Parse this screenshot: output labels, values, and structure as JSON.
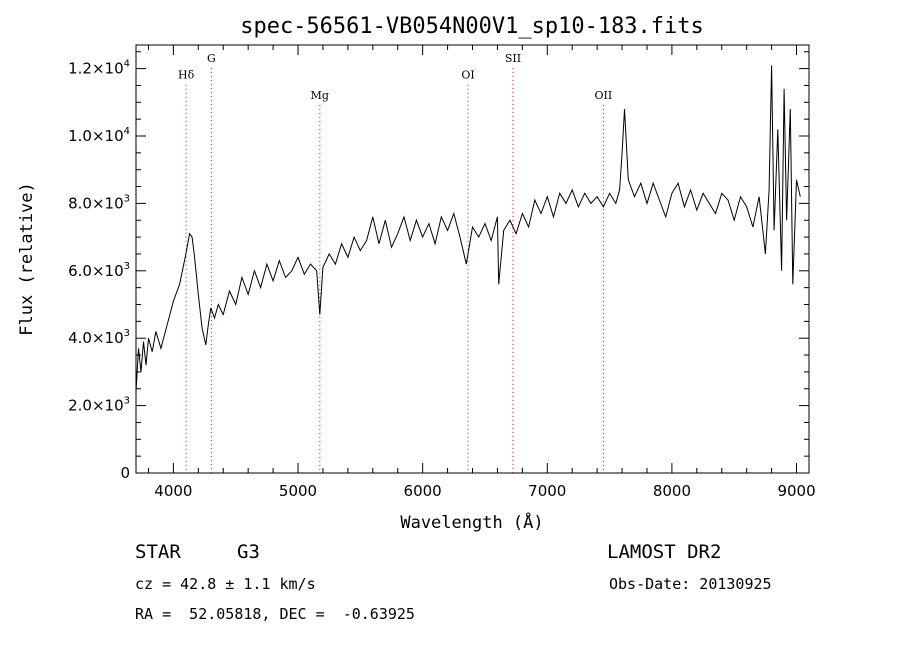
{
  "chart_data": {
    "type": "line",
    "title": "spec-56561-VB054N00V1_sp10-183.fits",
    "xlabel": "Wavelength (Å)",
    "ylabel": "Flux (relative)",
    "xlim": [
      3700,
      9100
    ],
    "ylim": [
      0,
      12700
    ],
    "xticks": [
      {
        "value": 4000,
        "label": "4000"
      },
      {
        "value": 5000,
        "label": "5000"
      },
      {
        "value": 6000,
        "label": "6000"
      },
      {
        "value": 7000,
        "label": "7000"
      },
      {
        "value": 8000,
        "label": "8000"
      },
      {
        "value": 9000,
        "label": "9000"
      }
    ],
    "yticks": [
      {
        "value": 0,
        "mant": "0",
        "exp": ""
      },
      {
        "value": 2000,
        "mant": "2.0×10",
        "exp": "3"
      },
      {
        "value": 4000,
        "mant": "4.0×10",
        "exp": "3"
      },
      {
        "value": 6000,
        "mant": "6.0×10",
        "exp": "3"
      },
      {
        "value": 8000,
        "mant": "8.0×10",
        "exp": "3"
      },
      {
        "value": 10000,
        "mant": "1.0×10",
        "exp": "4"
      },
      {
        "value": 12000,
        "mant": "1.2×10",
        "exp": "4"
      }
    ],
    "grid": false,
    "line_color": "#000000",
    "marker_color": "#cc0000",
    "spectral_lines": [
      {
        "label": "Hδ",
        "wavelength": 4102,
        "label_flux": 11700
      },
      {
        "label": "G",
        "wavelength": 4305,
        "label_flux": 12200
      },
      {
        "label": "Mg",
        "wavelength": 5175,
        "label_flux": 11100
      },
      {
        "label": "OI",
        "wavelength": 6364,
        "label_flux": 11700
      },
      {
        "label": "SII",
        "wavelength": 6725,
        "label_flux": 12200
      },
      {
        "label": "OII",
        "wavelength": 7450,
        "label_flux": 11100
      }
    ],
    "series": [
      {
        "x": [
          3700,
          3720,
          3740,
          3760,
          3780,
          3800,
          3830,
          3860,
          3900,
          3950,
          4000,
          4050,
          4100,
          4130,
          4150,
          4170,
          4200,
          4230,
          4260,
          4280,
          4300,
          4330,
          4360,
          4400,
          4450,
          4500,
          4550,
          4600,
          4650,
          4700,
          4750,
          4800,
          4850,
          4900,
          4950,
          5000,
          5050,
          5100,
          5150,
          5175,
          5200,
          5250,
          5300,
          5350,
          5400,
          5450,
          5500,
          5550,
          5600,
          5650,
          5700,
          5750,
          5800,
          5850,
          5900,
          5950,
          6000,
          6050,
          6100,
          6150,
          6200,
          6250,
          6300,
          6350,
          6400,
          6450,
          6500,
          6550,
          6600,
          6610,
          6650,
          6700,
          6750,
          6800,
          6850,
          6900,
          6950,
          7000,
          7050,
          7100,
          7150,
          7200,
          7250,
          7300,
          7350,
          7400,
          7450,
          7500,
          7550,
          7580,
          7600,
          7620,
          7650,
          7700,
          7750,
          7800,
          7850,
          7900,
          7950,
          8000,
          8050,
          8100,
          8150,
          8200,
          8250,
          8300,
          8350,
          8400,
          8450,
          8500,
          8550,
          8600,
          8650,
          8700,
          8750,
          8780,
          8800,
          8820,
          8850,
          8880,
          8900,
          8920,
          8950,
          8970,
          9000,
          9030
        ],
        "y": [
          2400,
          3700,
          3000,
          3900,
          3200,
          4000,
          3600,
          4200,
          3700,
          4400,
          5100,
          5600,
          6500,
          7100,
          7000,
          6400,
          5300,
          4300,
          3800,
          4400,
          4900,
          4600,
          5000,
          4700,
          5400,
          5000,
          5800,
          5300,
          6000,
          5500,
          6200,
          5700,
          6300,
          5800,
          6000,
          6400,
          5900,
          6200,
          6000,
          4700,
          6100,
          6500,
          6200,
          6800,
          6400,
          7000,
          6600,
          6900,
          7600,
          6800,
          7500,
          6700,
          7100,
          7600,
          6900,
          7500,
          7000,
          7400,
          6800,
          7600,
          7200,
          7700,
          7000,
          6200,
          7300,
          7000,
          7400,
          6900,
          7600,
          5600,
          7200,
          7500,
          7100,
          7700,
          7300,
          8100,
          7700,
          8200,
          7600,
          8300,
          8000,
          8400,
          7900,
          8300,
          8000,
          8200,
          7900,
          8300,
          8000,
          8400,
          9500,
          10800,
          8700,
          8200,
          8600,
          8000,
          8600,
          8100,
          7600,
          8300,
          8600,
          7900,
          8400,
          7800,
          8300,
          8000,
          7700,
          8300,
          8100,
          7500,
          8200,
          7900,
          7300,
          8200,
          6500,
          8400,
          12100,
          7200,
          10200,
          6000,
          11400,
          7500,
          10800,
          5600,
          8700,
          8200
        ]
      }
    ]
  },
  "info": {
    "object_class": "STAR",
    "subclass": "G3",
    "survey": "LAMOST DR2",
    "redshift": "cz = 42.8 ± 1.1 km/s",
    "obs_date": "Obs-Date: 20130925",
    "coords": "RA =  52.05818, DEC =  -0.63925"
  }
}
